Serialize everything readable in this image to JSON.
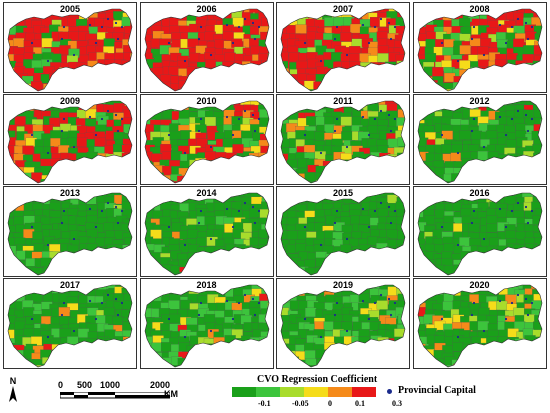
{
  "colors": {
    "c1": "#1aa01a",
    "c2": "#3cc43c",
    "c3": "#a8dc2c",
    "c4": "#f5dc1a",
    "c5": "#f58a1a",
    "c6": "#e81818",
    "capital": "#1a2a8c"
  },
  "panels": [
    {
      "year": "2005",
      "mix": [
        0.1,
        0.05,
        0.05,
        0.05,
        0.1,
        0.65
      ]
    },
    {
      "year": "2006",
      "mix": [
        0.08,
        0.05,
        0.04,
        0.05,
        0.13,
        0.65
      ]
    },
    {
      "year": "2007",
      "mix": [
        0.15,
        0.08,
        0.06,
        0.06,
        0.1,
        0.55
      ]
    },
    {
      "year": "2008",
      "mix": [
        0.2,
        0.08,
        0.05,
        0.05,
        0.12,
        0.5
      ]
    },
    {
      "year": "2009",
      "mix": [
        0.28,
        0.1,
        0.08,
        0.06,
        0.08,
        0.4
      ]
    },
    {
      "year": "2010",
      "mix": [
        0.35,
        0.1,
        0.06,
        0.05,
        0.14,
        0.3
      ]
    },
    {
      "year": "2011",
      "mix": [
        0.55,
        0.12,
        0.07,
        0.08,
        0.08,
        0.1
      ]
    },
    {
      "year": "2012",
      "mix": [
        0.75,
        0.1,
        0.04,
        0.04,
        0.04,
        0.03
      ]
    },
    {
      "year": "2013",
      "mix": [
        0.85,
        0.08,
        0.02,
        0.02,
        0.02,
        0.01
      ]
    },
    {
      "year": "2014",
      "mix": [
        0.86,
        0.08,
        0.02,
        0.02,
        0.01,
        0.01
      ]
    },
    {
      "year": "2015",
      "mix": [
        0.88,
        0.07,
        0.02,
        0.02,
        0.01,
        0.0
      ]
    },
    {
      "year": "2016",
      "mix": [
        0.88,
        0.07,
        0.02,
        0.02,
        0.01,
        0.0
      ]
    },
    {
      "year": "2017",
      "mix": [
        0.7,
        0.18,
        0.04,
        0.04,
        0.03,
        0.01
      ]
    },
    {
      "year": "2018",
      "mix": [
        0.62,
        0.25,
        0.05,
        0.04,
        0.03,
        0.01
      ]
    },
    {
      "year": "2019",
      "mix": [
        0.55,
        0.25,
        0.08,
        0.06,
        0.05,
        0.01
      ]
    },
    {
      "year": "2020",
      "mix": [
        0.6,
        0.2,
        0.06,
        0.06,
        0.06,
        0.02
      ]
    }
  ],
  "scale_bar": {
    "labels": [
      "0",
      "500",
      "1000",
      "2000"
    ],
    "unit": "KM"
  },
  "north": "N",
  "legend": {
    "title": "CVO Regression Coefficient",
    "ticks": [
      "-0.1",
      "-0.05",
      "0",
      "0.1",
      "0.3"
    ],
    "capital_label": "Provincial Capital"
  }
}
